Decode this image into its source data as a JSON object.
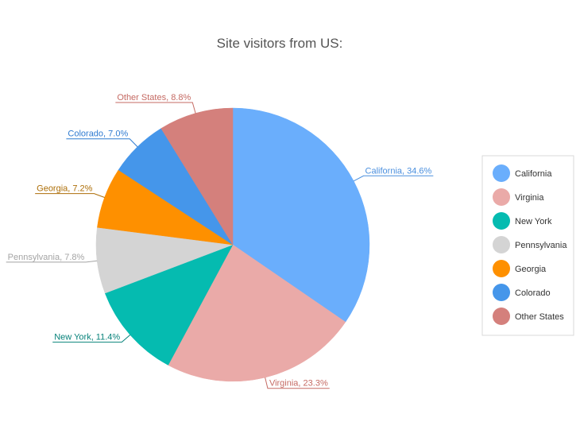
{
  "chart_data": {
    "type": "pie",
    "title": "Site visitors from US:",
    "categories": [
      "California",
      "Virginia",
      "New York",
      "Pennsylvania",
      "Georgia",
      "Colorado",
      "Other States"
    ],
    "values": [
      34.6,
      23.3,
      11.4,
      7.8,
      7.2,
      7.0,
      8.8
    ],
    "unit": "%",
    "colors": [
      "#6aaefc",
      "#eaaaa8",
      "#05bbb0",
      "#d4d4d4",
      "#fe9000",
      "#4596ea",
      "#d4807c"
    ],
    "label_colors": [
      "#4a8fde",
      "#c56a63",
      "#07827a",
      "#a4a4a4",
      "#ad6e07",
      "#2f7bd1",
      "#c56a63"
    ],
    "start_angle_deg": 0,
    "direction": "clockwise",
    "legend_position": "right",
    "data_labels": "outside"
  }
}
